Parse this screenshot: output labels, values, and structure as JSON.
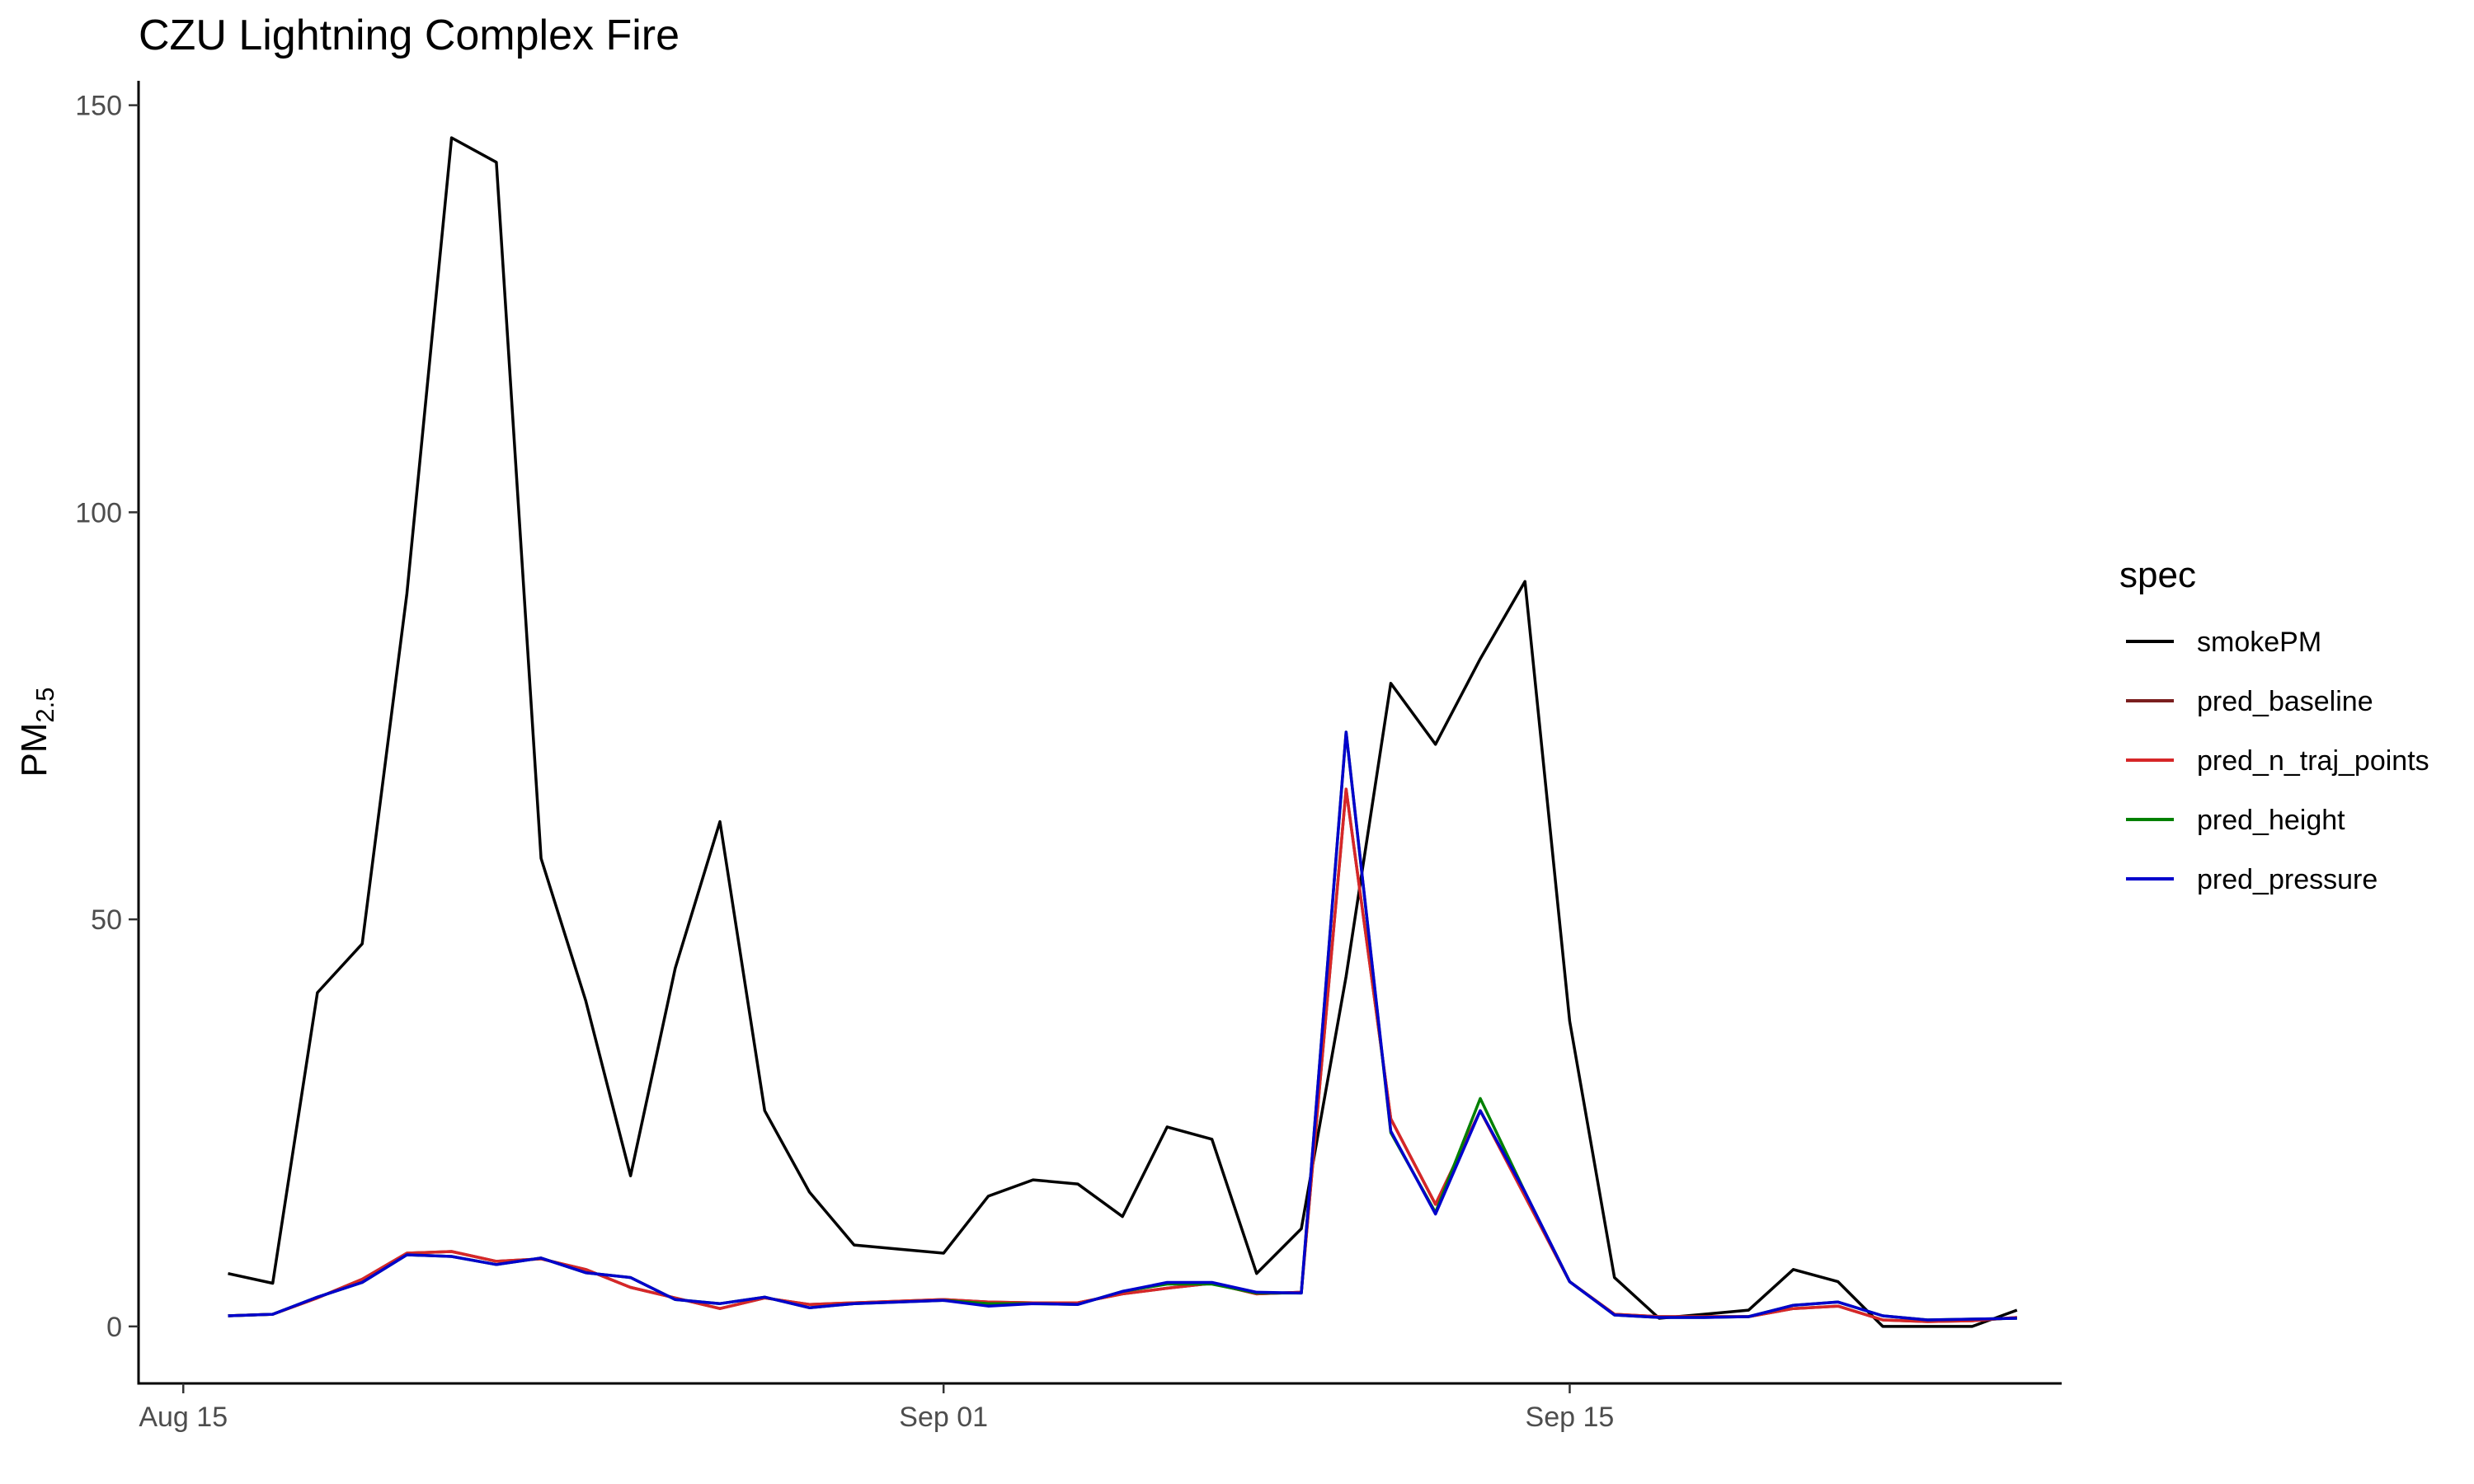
{
  "chart_data": {
    "type": "line",
    "title": "CZU Lightning Complex Fire",
    "ylabel": "PM",
    "ylabel_subscript": "2.5",
    "xlabel": "",
    "xlim": [
      "2020-08-14",
      "2020-09-26"
    ],
    "ylim": [
      -7,
      153
    ],
    "x_ticks": [
      {
        "date": "2020-08-15",
        "label": "Aug 15"
      },
      {
        "date": "2020-09-01",
        "label": "Sep 01"
      },
      {
        "date": "2020-09-15",
        "label": "Sep 15"
      }
    ],
    "y_ticks": [
      {
        "value": 0,
        "label": "0"
      },
      {
        "value": 50,
        "label": "50"
      },
      {
        "value": 100,
        "label": "100"
      },
      {
        "value": 150,
        "label": "150"
      }
    ],
    "grid": false,
    "legend": {
      "title": "spec",
      "position": "right"
    },
    "x": [
      "2020-08-16",
      "2020-08-17",
      "2020-08-18",
      "2020-08-19",
      "2020-08-20",
      "2020-08-21",
      "2020-08-22",
      "2020-08-23",
      "2020-08-24",
      "2020-08-25",
      "2020-08-26",
      "2020-08-27",
      "2020-08-28",
      "2020-08-29",
      "2020-08-30",
      "2020-08-31",
      "2020-09-01",
      "2020-09-02",
      "2020-09-03",
      "2020-09-04",
      "2020-09-05",
      "2020-09-06",
      "2020-09-07",
      "2020-09-08",
      "2020-09-09",
      "2020-09-10",
      "2020-09-11",
      "2020-09-12",
      "2020-09-13",
      "2020-09-14",
      "2020-09-15",
      "2020-09-16",
      "2020-09-17",
      "2020-09-18",
      "2020-09-19",
      "2020-09-20",
      "2020-09-21",
      "2020-09-22",
      "2020-09-23",
      "2020-09-24",
      "2020-09-25"
    ],
    "series": [
      {
        "name": "smokePM",
        "color": "#000000",
        "values": [
          6.5,
          5.3,
          41,
          47,
          90,
          146,
          143,
          57.5,
          40,
          18.5,
          44,
          62,
          26.5,
          16.5,
          10,
          9.5,
          9,
          16,
          18,
          17.5,
          13.5,
          24.5,
          23,
          6.5,
          12,
          43,
          79,
          71.5,
          82,
          91.5,
          37.5,
          6,
          1,
          1.5,
          2,
          7,
          5.5,
          0,
          0,
          0,
          2
        ]
      },
      {
        "name": "pred_baseline",
        "color": "#7a1f1f",
        "values": [
          1.3,
          1.5,
          3.5,
          5.8,
          9,
          9.2,
          8,
          8.3,
          7,
          4.8,
          3.5,
          2.2,
          3.5,
          2.7,
          2.9,
          3.1,
          3.3,
          3,
          2.9,
          2.9,
          4,
          4.7,
          5.3,
          4,
          4.2,
          66,
          25.5,
          15,
          26.5,
          16,
          5.5,
          1.5,
          1.2,
          1.2,
          1.2,
          2.2,
          2.5,
          0.8,
          0.6,
          0.7,
          1.1
        ]
      },
      {
        "name": "pred_n_traj_points",
        "color": "#d62728",
        "values": [
          1.3,
          1.5,
          3.5,
          5.8,
          9,
          9.2,
          8,
          8.3,
          7,
          4.8,
          3.5,
          2.2,
          3.5,
          2.7,
          2.9,
          3.1,
          3.3,
          3,
          2.9,
          2.9,
          4,
          4.7,
          5.3,
          4,
          4.2,
          66,
          25.5,
          15,
          26.5,
          16,
          5.5,
          1.5,
          1.2,
          1.2,
          1.2,
          2.2,
          2.5,
          0.8,
          0.6,
          0.7,
          1.1
        ]
      },
      {
        "name": "pred_height",
        "color": "#008000",
        "values": [
          1.3,
          1.5,
          3.6,
          5.4,
          8.8,
          8.6,
          7.6,
          8.4,
          6.6,
          6,
          3.3,
          2.8,
          3.6,
          2.3,
          2.8,
          3,
          3.2,
          2.8,
          2.8,
          2.7,
          4.3,
          5.2,
          5.2,
          4.1,
          4.1,
          73,
          23.8,
          14,
          28,
          16.5,
          5.5,
          1.4,
          1.1,
          1.1,
          1.2,
          2.6,
          3,
          1.3,
          0.8,
          0.9,
          1
        ]
      },
      {
        "name": "pred_pressure",
        "color": "#0000cc",
        "values": [
          1.3,
          1.5,
          3.6,
          5.4,
          8.8,
          8.6,
          7.6,
          8.4,
          6.6,
          6,
          3.3,
          2.8,
          3.6,
          2.3,
          2.8,
          3,
          3.2,
          2.5,
          2.8,
          2.7,
          4.3,
          5.4,
          5.4,
          4.2,
          4.1,
          73,
          24,
          13.8,
          26.5,
          16.5,
          5.5,
          1.4,
          1.1,
          1.1,
          1.2,
          2.6,
          3,
          1.3,
          0.8,
          0.9,
          1
        ]
      }
    ]
  }
}
